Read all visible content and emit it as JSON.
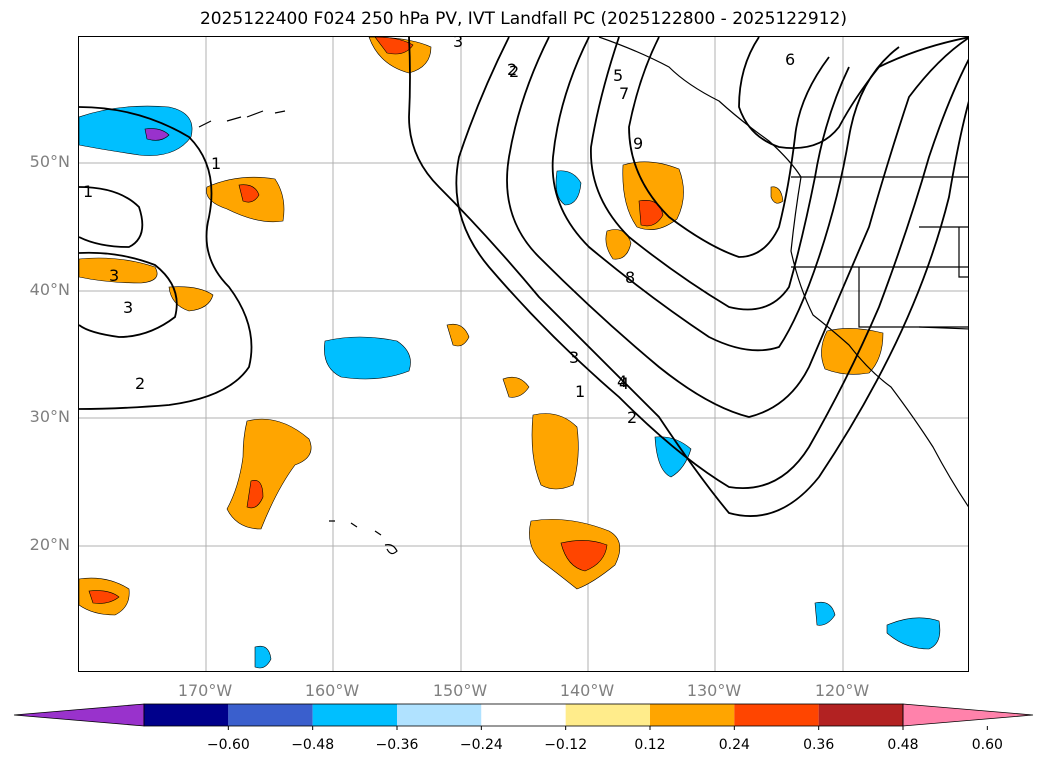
{
  "title": "2025122400 F024 250 hPa PV, IVT Landfall PC (2025122800 - 2025122912)",
  "map": {
    "lat_labels": [
      "50°N",
      "40°N",
      "30°N",
      "20°N"
    ],
    "lon_labels": [
      "170°W",
      "160°W",
      "150°W",
      "140°W",
      "130°W",
      "120°W"
    ],
    "contour_labels": [
      "1",
      "2",
      "3",
      "4",
      "5",
      "6",
      "7",
      "8",
      "9",
      "3",
      "4",
      "3",
      "2",
      "1",
      "2",
      "3",
      "1",
      "2"
    ]
  },
  "colorbar": {
    "ticks": [
      "−0.60",
      "−0.48",
      "−0.36",
      "−0.24",
      "−0.12",
      "0.12",
      "0.24",
      "0.36",
      "0.48",
      "0.60"
    ],
    "colors": [
      "#9932cc",
      "#00008b",
      "#3a5fcd",
      "#00bfff",
      "#b0e2ff",
      "#ffffff",
      "#ffec8b",
      "#ffa500",
      "#ff4500",
      "#b22222",
      "#ff82ab"
    ]
  }
}
